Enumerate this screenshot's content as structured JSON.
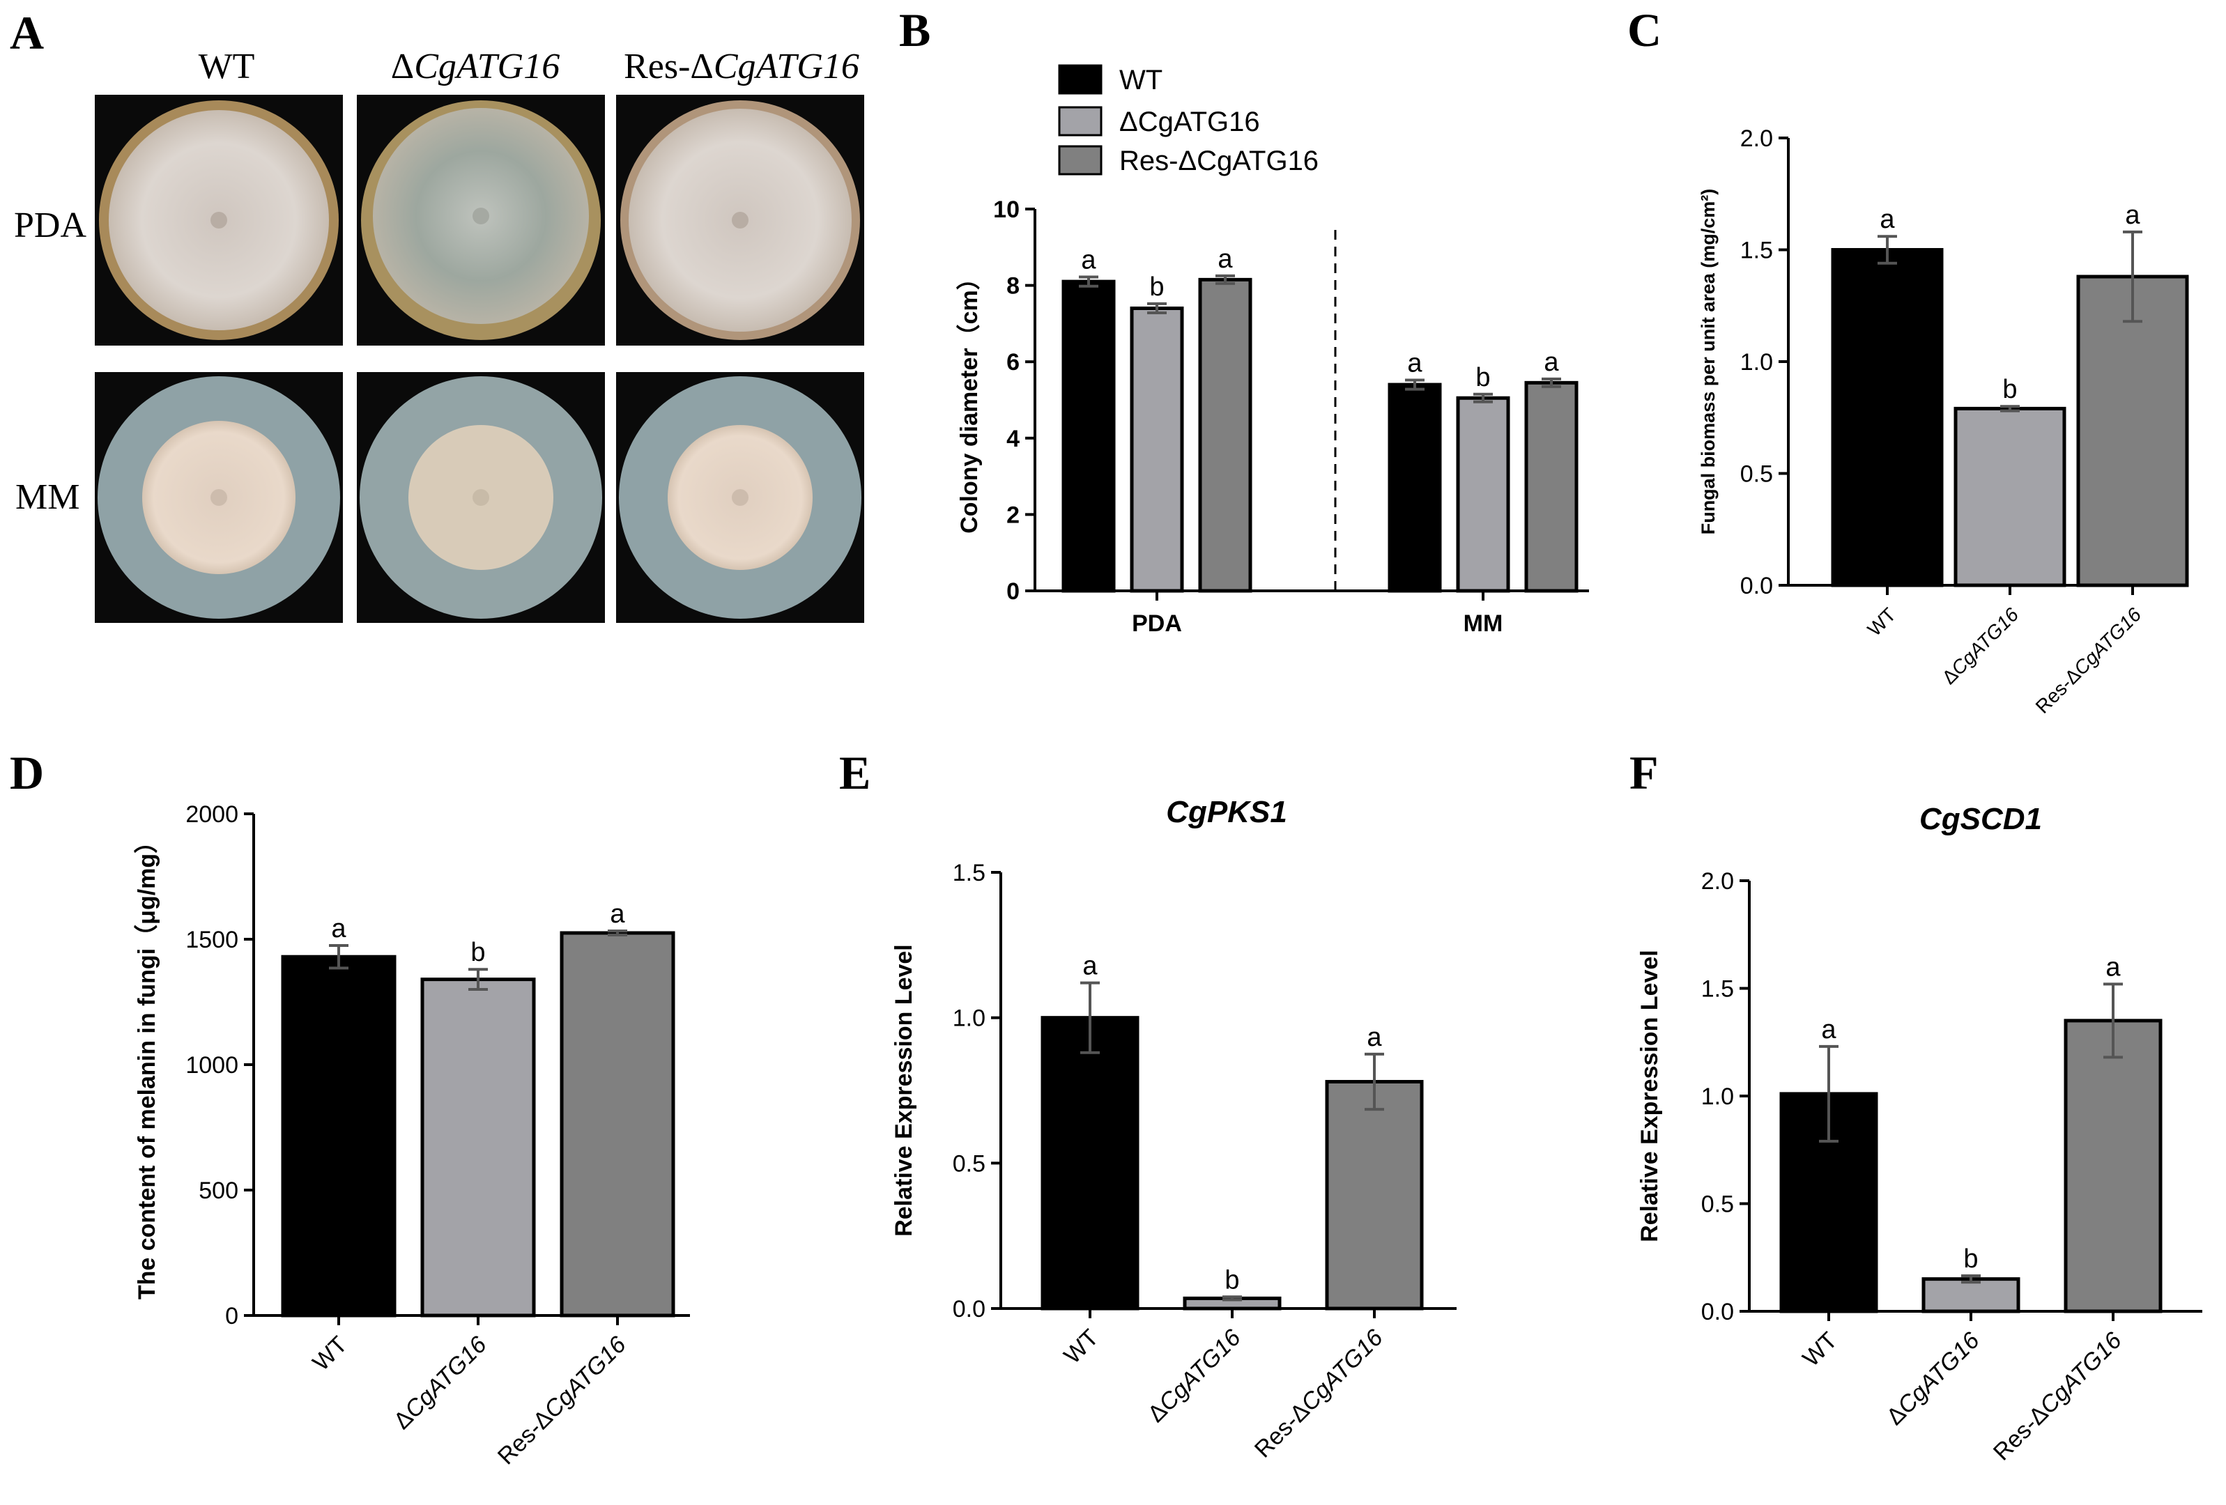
{
  "panel_letters": [
    "A",
    "B",
    "C",
    "D",
    "E",
    "F"
  ],
  "colors": {
    "WT": "#000000",
    "dCgATG16": "#a3a3a8",
    "Res": "#808080",
    "plate_background": "#0a0a0a",
    "pda_colony": "#d4cdc6",
    "pda_rim": "#a88a5a",
    "mm_agar": "#8fa2a6",
    "mm_colony": "#e4d3c4"
  },
  "photos": {
    "column_headers": [
      {
        "prefix": "",
        "italic": "WT",
        "suffix": ""
      },
      {
        "prefix": "Δ",
        "italic": "CgATG16",
        "suffix": ""
      },
      {
        "prefix": "Res-Δ",
        "italic": "CgATG16",
        "suffix": ""
      }
    ],
    "column_headers_upright": [
      "WT"
    ],
    "row_labels": [
      "PDA",
      "MM"
    ]
  },
  "chart_data": [
    {
      "panel": "B",
      "type": "bar",
      "title": "",
      "xlabel": "",
      "ylabel": "Colony diameter（cm）",
      "ylim": [
        0,
        10
      ],
      "yticks": [
        "0",
        "2",
        "4",
        "6",
        "8",
        "10"
      ],
      "categories": [
        "PDA",
        "MM"
      ],
      "legend": [
        "WT",
        "ΔCgATG16",
        "Res-ΔCgATG16"
      ],
      "legend_placement": "top-left, above plot",
      "series": [
        {
          "name": "WT",
          "values": [
            8.1,
            5.4
          ],
          "errors": [
            0.12,
            0.12
          ],
          "sig": [
            "a",
            "a"
          ]
        },
        {
          "name": "ΔCgATG16",
          "values": [
            7.4,
            5.05
          ],
          "errors": [
            0.12,
            0.1
          ],
          "sig": [
            "b",
            "b"
          ]
        },
        {
          "name": "Res-ΔCgATG16",
          "values": [
            8.15,
            5.45
          ],
          "errors": [
            0.1,
            0.1
          ],
          "sig": [
            "a",
            "a"
          ]
        }
      ],
      "separator": "dashed line between PDA and MM groups"
    },
    {
      "panel": "C",
      "type": "bar",
      "title": "",
      "ylabel": "Fungal biomass per unit area (mg/cm²)",
      "ylim": [
        0,
        2.0
      ],
      "yticks": [
        "0.0",
        "0.5",
        "1.0",
        "1.5",
        "2.0"
      ],
      "categories": [
        "WT",
        "ΔCgATG16",
        "Res-ΔCgATG16"
      ],
      "values": [
        1.5,
        0.79,
        1.38
      ],
      "errors": [
        0.06,
        0.01,
        0.2
      ],
      "sig": [
        "a",
        "b",
        "a"
      ]
    },
    {
      "panel": "D",
      "type": "bar",
      "title": "",
      "ylabel": "The content of melanin in fungi（μg/mg）",
      "ylim": [
        0,
        2000
      ],
      "yticks": [
        "0",
        "500",
        "1000",
        "1500",
        "2000"
      ],
      "categories": [
        "WT",
        "ΔCgATG16",
        "Res-ΔCgATG16"
      ],
      "values": [
        1430,
        1340,
        1525
      ],
      "errors": [
        45,
        40,
        8
      ],
      "sig": [
        "a",
        "b",
        "a"
      ]
    },
    {
      "panel": "E",
      "type": "bar",
      "title": "CgPKS1",
      "ylabel": "Relative Expression Level",
      "ylim": [
        0,
        1.5
      ],
      "yticks": [
        "0.0",
        "0.5",
        "1.0",
        "1.5"
      ],
      "categories": [
        "WT",
        "ΔCgATG16",
        "Res-ΔCgATG16"
      ],
      "values": [
        1.0,
        0.035,
        0.78
      ],
      "errors": [
        0.12,
        0.005,
        0.095
      ],
      "sig": [
        "a",
        "b",
        "a"
      ]
    },
    {
      "panel": "F",
      "type": "bar",
      "title": "CgSCD1",
      "ylabel": "Relative Expression Level",
      "ylim": [
        0,
        2.0
      ],
      "yticks": [
        "0.0",
        "0.5",
        "1.0",
        "1.5",
        "2.0"
      ],
      "categories": [
        "WT",
        "ΔCgATG16",
        "Res-ΔCgATG16"
      ],
      "values": [
        1.01,
        0.15,
        1.35
      ],
      "errors": [
        0.22,
        0.015,
        0.17
      ],
      "sig": [
        "a",
        "b",
        "a"
      ]
    }
  ]
}
